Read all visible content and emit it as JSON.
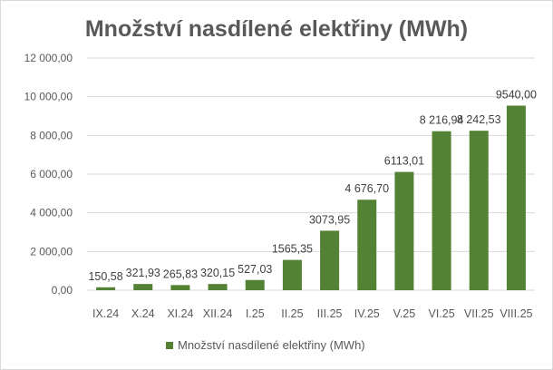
{
  "chart_data": {
    "type": "bar",
    "title": "Množství nasdílené elektřiny (MWh)",
    "xlabel": "",
    "ylabel": "",
    "categories": [
      "IX.24",
      "X.24",
      "XI.24",
      "XII.24",
      "I.25",
      "II.25",
      "III.25",
      "IV.25",
      "V.25",
      "VI.25",
      "VII.25",
      "VIII.25"
    ],
    "series": [
      {
        "name": "Množství nasdílené elektřiny (MWh)",
        "color": "#548235",
        "values": [
          150.58,
          321.93,
          265.83,
          320.15,
          527.03,
          1565.35,
          3073.95,
          4676.7,
          6113.01,
          8216.94,
          8242.53,
          9540.0
        ],
        "labels": [
          "150,58",
          "321,93",
          "265,83",
          "320,15",
          "527,03",
          "1565,35",
          "3073,95",
          "4 676,70",
          "6113,01",
          "8 216,94",
          "8 242,53",
          "9540,00"
        ]
      }
    ],
    "ylim": [
      0,
      12000
    ],
    "yticks": [
      0,
      2000,
      4000,
      6000,
      8000,
      10000,
      12000
    ],
    "ytick_labels": [
      "0,00",
      "2 000,00",
      "4 000,00",
      "6 000,00",
      "8 000,00",
      "10 000,00",
      "12 000,00"
    ],
    "grid": true,
    "legend_position": "bottom"
  }
}
